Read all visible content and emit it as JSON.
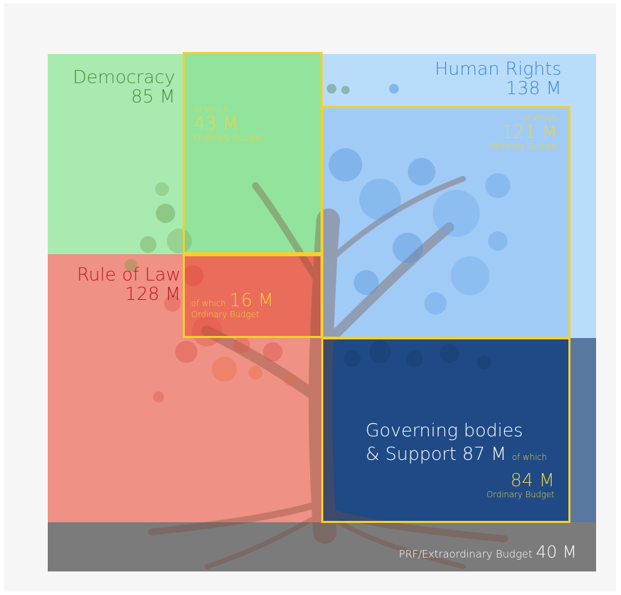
{
  "colors": {
    "democracy": "#a9eab1",
    "human_rights": "#b9dcfa",
    "rule_of_law": "#ef9184",
    "governing": "#1f4a86",
    "prf": "#7b7b7b",
    "frame": "#f6cf2b"
  },
  "democracy": {
    "name": "Democracy",
    "total": "85 M",
    "of_which": "of which",
    "ordinary": "43 M",
    "ordinary_label": "Ordinary Budget"
  },
  "human_rights": {
    "name": "Human Rights",
    "total": "138 M",
    "of_which": "of which",
    "ordinary": "121 M",
    "ordinary_label": "Ordinary Budget"
  },
  "rule_of_law": {
    "name": "Rule of Law",
    "total": "128 M",
    "of_which": "of which",
    "ordinary": "16 M",
    "ordinary_label": "Ordinary Budget"
  },
  "governing": {
    "name_line1": "Governing bodies",
    "name_line2": "& Support",
    "total": "87 M",
    "of_which": "of which",
    "ordinary": "84 M",
    "ordinary_label": "Ordinary Budget"
  },
  "prf": {
    "name": "PRF/Extraordinary Budget",
    "total": "40 M"
  }
}
